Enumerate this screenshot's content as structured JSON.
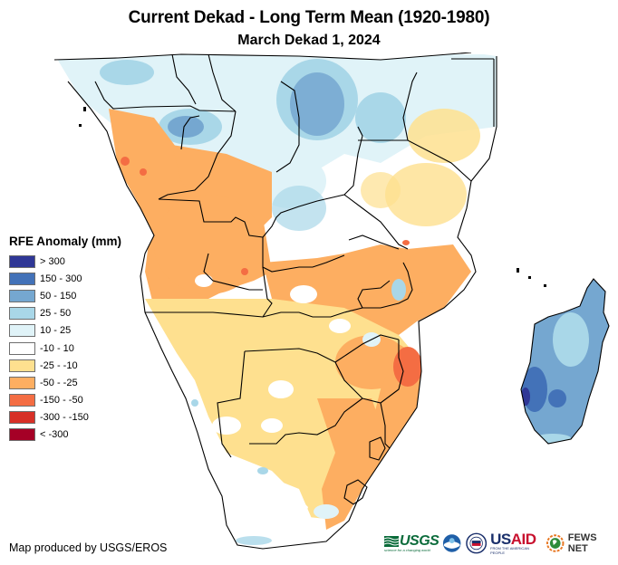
{
  "header": {
    "title": "Current Dekad - Long Term Mean (1920-1980)",
    "subtitle": "March Dekad 1, 2024"
  },
  "legend": {
    "title": "RFE Anomaly (mm)",
    "items": [
      {
        "label": "> 300",
        "color": "#2f3796"
      },
      {
        "label": "150 - 300",
        "color": "#4372b8"
      },
      {
        "label": "50 - 150",
        "color": "#75a7d0"
      },
      {
        "label": "25 - 50",
        "color": "#a9d7e8"
      },
      {
        "label": "10 - 25",
        "color": "#e0f3f8"
      },
      {
        "label": "-10 - 10",
        "color": "#ffffff"
      },
      {
        "label": "-25 - -10",
        "color": "#fee08f"
      },
      {
        "label": "-50 - -25",
        "color": "#fdae61"
      },
      {
        "label": "-150 - -50",
        "color": "#f46d43"
      },
      {
        "label": "-300 - -150",
        "color": "#d73027"
      },
      {
        "label": "< -300",
        "color": "#a50026"
      }
    ]
  },
  "footer": {
    "credit": "Map produced by USGS/EROS",
    "logos": {
      "usgs": "USGS",
      "usgs_tagline": "science for a changing world",
      "usaid_us": "US",
      "usaid_aid": "AID",
      "usaid_tagline": "FROM THE AMERICAN PEOPLE",
      "fews": "FEWS NET"
    }
  }
}
